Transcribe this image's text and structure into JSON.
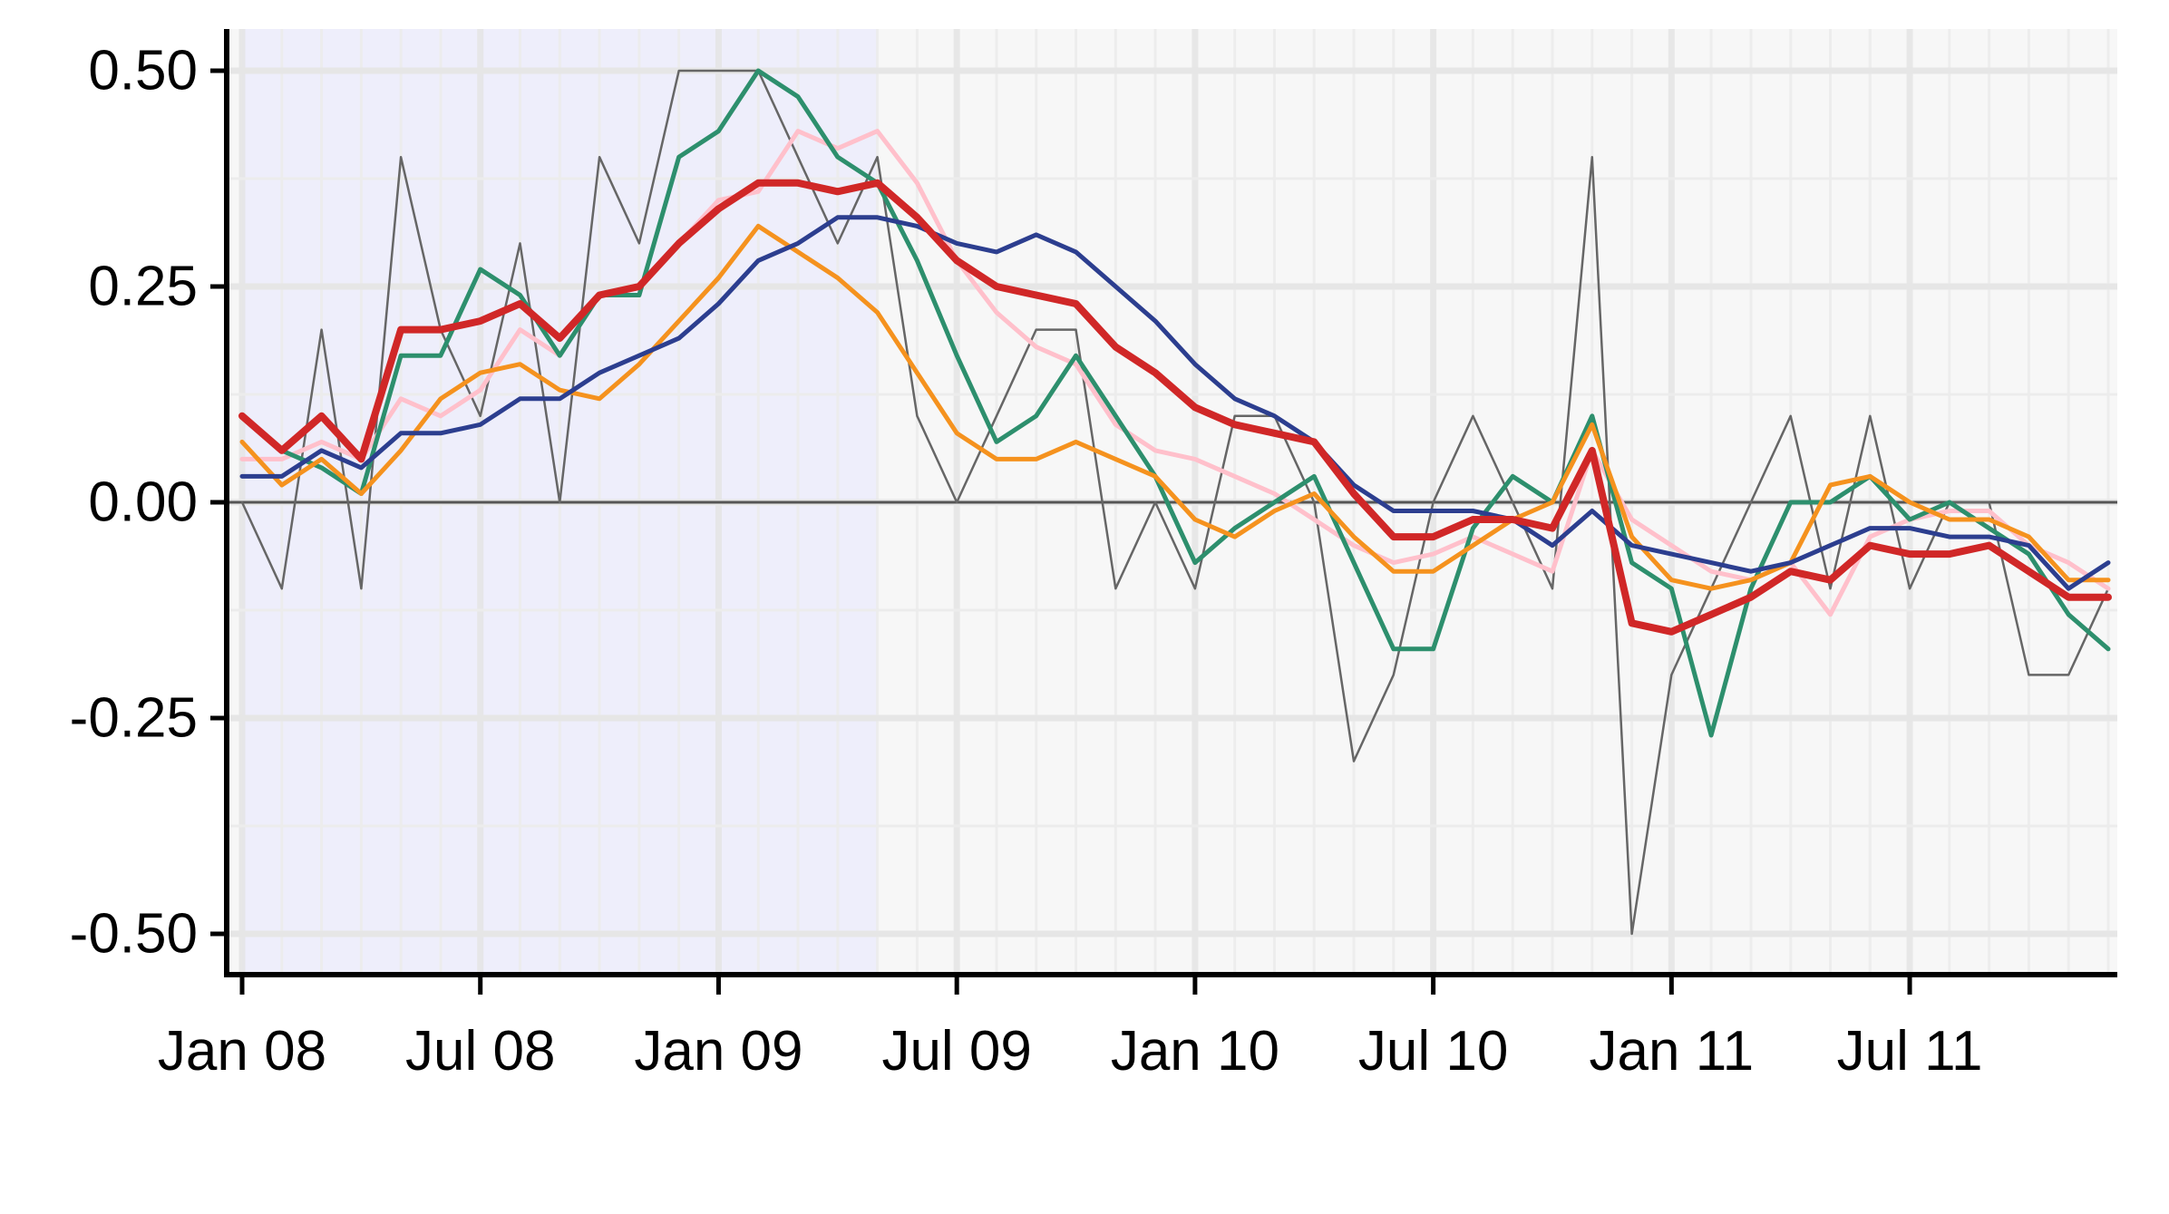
{
  "chart_data": {
    "type": "line",
    "title": "",
    "xlabel": "",
    "ylabel": "",
    "x": [
      "2008-01",
      "2008-02",
      "2008-03",
      "2008-04",
      "2008-05",
      "2008-06",
      "2008-07",
      "2008-08",
      "2008-09",
      "2008-10",
      "2008-11",
      "2008-12",
      "2009-01",
      "2009-02",
      "2009-03",
      "2009-04",
      "2009-05",
      "2009-06",
      "2009-07",
      "2009-08",
      "2009-09",
      "2009-10",
      "2009-11",
      "2009-12",
      "2010-01",
      "2010-02",
      "2010-03",
      "2010-04",
      "2010-05",
      "2010-06",
      "2010-07",
      "2010-08",
      "2010-09",
      "2010-10",
      "2010-11",
      "2010-12",
      "2011-01",
      "2011-02",
      "2011-03",
      "2011-04",
      "2011-05",
      "2011-06",
      "2011-07",
      "2011-08",
      "2011-09",
      "2011-10",
      "2011-11",
      "2011-12"
    ],
    "xlim": [
      "2008-01",
      "2011-12"
    ],
    "ylim": [
      -0.55,
      0.55
    ],
    "x_ticks": [
      {
        "x": "2008-01",
        "label": "Jan 08"
      },
      {
        "x": "2008-07",
        "label": "Jul 08"
      },
      {
        "x": "2009-01",
        "label": "Jan 09"
      },
      {
        "x": "2009-07",
        "label": "Jul 09"
      },
      {
        "x": "2010-01",
        "label": "Jan 10"
      },
      {
        "x": "2010-07",
        "label": "Jul 10"
      },
      {
        "x": "2011-01",
        "label": "Jan 11"
      },
      {
        "x": "2011-07",
        "label": "Jul 11"
      }
    ],
    "y_ticks": [
      {
        "y": 0.5,
        "label": "0.50"
      },
      {
        "y": 0.25,
        "label": "0.25"
      },
      {
        "y": 0,
        "label": "0.00"
      },
      {
        "y": -0.25,
        "label": "-0.25"
      },
      {
        "y": -0.5,
        "label": "-0.50"
      }
    ],
    "grid": true,
    "shaded_region": {
      "from": "2008-01",
      "to": "2009-05",
      "color": "#ececfc"
    },
    "reference_line": {
      "y": 0,
      "color": "#555555"
    },
    "colors": {
      "background": "#ffffff",
      "panel": "#f7f7f7",
      "grid_major": "#e6e6e6",
      "grid_minor": "#ececec",
      "axis": "#000000"
    },
    "series": [
      {
        "color": "#666666",
        "width": 2.5,
        "values": [
          0,
          -0.1,
          0.2,
          -0.1,
          0.4,
          0.2,
          0.1,
          0.3,
          0,
          0.4,
          0.3,
          0.5,
          0.5,
          0.5,
          0.4,
          0.3,
          0.4,
          0.1,
          0,
          0.1,
          0.2,
          0.2,
          -0.1,
          0,
          -0.1,
          0.1,
          0.1,
          0,
          -0.3,
          -0.2,
          0,
          0.1,
          0,
          -0.1,
          0.4,
          -0.5,
          -0.2,
          -0.1,
          0,
          0.1,
          -0.1,
          0.1,
          -0.1,
          0,
          0,
          -0.2,
          -0.2,
          -0.1
        ]
      },
      {
        "color": "#ffc0cb",
        "width": 5,
        "values": [
          0.05,
          0.05,
          0.07,
          0.05,
          0.12,
          0.1,
          0.13,
          0.2,
          0.17,
          0.24,
          0.25,
          0.3,
          0.35,
          0.36,
          0.43,
          0.41,
          0.43,
          0.37,
          0.28,
          0.22,
          0.18,
          0.16,
          0.09,
          0.06,
          0.05,
          0.03,
          0.01,
          -0.02,
          -0.05,
          -0.07,
          -0.06,
          -0.04,
          -0.06,
          -0.08,
          0.06,
          -0.02,
          -0.05,
          -0.08,
          -0.09,
          -0.07,
          -0.13,
          -0.04,
          -0.02,
          -0.01,
          -0.01,
          -0.05,
          -0.07,
          -0.1
        ]
      },
      {
        "color": "#2d8f6d",
        "width": 5,
        "values": [
          0.1,
          0.06,
          0.04,
          0.01,
          0.17,
          0.17,
          0.27,
          0.24,
          0.17,
          0.24,
          0.24,
          0.4,
          0.43,
          0.5,
          0.47,
          0.4,
          0.37,
          0.28,
          0.17,
          0.07,
          0.1,
          0.17,
          0.1,
          0.03,
          -0.07,
          -0.03,
          0,
          0.03,
          -0.07,
          -0.17,
          -0.17,
          -0.03,
          0.03,
          0,
          0.1,
          -0.07,
          -0.1,
          -0.27,
          -0.1,
          0,
          0,
          0.03,
          -0.02,
          0,
          -0.03,
          -0.06,
          -0.13,
          -0.17
        ]
      },
      {
        "color": "#f5921e",
        "width": 5,
        "values": [
          0.07,
          0.02,
          0.05,
          0.01,
          0.06,
          0.12,
          0.15,
          0.16,
          0.13,
          0.12,
          0.16,
          0.21,
          0.26,
          0.32,
          0.29,
          0.26,
          0.22,
          0.15,
          0.08,
          0.05,
          0.05,
          0.07,
          0.05,
          0.03,
          -0.02,
          -0.04,
          -0.01,
          0.01,
          -0.04,
          -0.08,
          -0.08,
          -0.05,
          -0.02,
          0,
          0.09,
          -0.04,
          -0.09,
          -0.1,
          -0.09,
          -0.07,
          0.02,
          0.03,
          0,
          -0.02,
          -0.02,
          -0.04,
          -0.09,
          -0.09
        ]
      },
      {
        "color": "#2c3e8f",
        "width": 5,
        "values": [
          0.03,
          0.03,
          0.06,
          0.04,
          0.08,
          0.08,
          0.09,
          0.12,
          0.12,
          0.15,
          0.17,
          0.19,
          0.23,
          0.28,
          0.3,
          0.33,
          0.33,
          0.32,
          0.3,
          0.29,
          0.31,
          0.29,
          0.25,
          0.21,
          0.16,
          0.12,
          0.1,
          0.07,
          0.02,
          -0.01,
          -0.01,
          -0.01,
          -0.02,
          -0.05,
          -0.01,
          -0.05,
          -0.06,
          -0.07,
          -0.08,
          -0.07,
          -0.05,
          -0.03,
          -0.03,
          -0.04,
          -0.04,
          -0.05,
          -0.1,
          -0.07
        ]
      },
      {
        "color": "#d02727",
        "width": 8,
        "values": [
          0.1,
          0.06,
          0.1,
          0.05,
          0.2,
          0.2,
          0.21,
          0.23,
          0.19,
          0.24,
          0.25,
          0.3,
          0.34,
          0.37,
          0.37,
          0.36,
          0.37,
          0.33,
          0.28,
          0.25,
          0.24,
          0.23,
          0.18,
          0.15,
          0.11,
          0.09,
          0.08,
          0.07,
          0.01,
          -0.04,
          -0.04,
          -0.02,
          -0.02,
          -0.03,
          0.06,
          -0.14,
          -0.15,
          -0.13,
          -0.11,
          -0.08,
          -0.09,
          -0.05,
          -0.06,
          -0.06,
          -0.05,
          -0.08,
          -0.11,
          -0.11
        ]
      }
    ]
  }
}
